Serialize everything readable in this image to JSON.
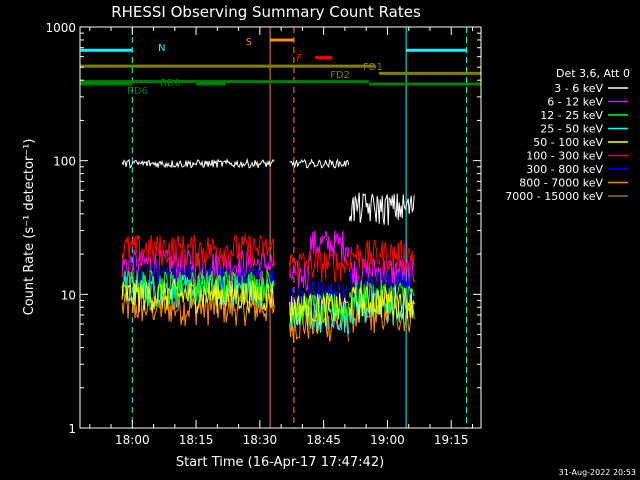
{
  "chart_data": {
    "type": "line",
    "title": "RHESSI Observing Summary Count Rates",
    "xlabel": "Start Time (16-Apr-17 17:47:42)",
    "ylabel": "Count Rate (s⁻¹ detector⁻¹)",
    "yscale": "log",
    "ylim": [
      1,
      1000
    ],
    "xlim_minutes_after_17_00": [
      47.7,
      142.0
    ],
    "y_ticks": [
      {
        "value": 1,
        "label": "1"
      },
      {
        "value": 10,
        "label": "10"
      },
      {
        "value": 100,
        "label": "100"
      },
      {
        "value": 1000,
        "label": "1000"
      }
    ],
    "x_ticks": [
      {
        "minute": 60,
        "label": "18:00"
      },
      {
        "minute": 75,
        "label": "18:15"
      },
      {
        "minute": 90,
        "label": "18:30"
      },
      {
        "minute": 105,
        "label": "18:45"
      },
      {
        "minute": 120,
        "label": "19:00"
      },
      {
        "minute": 135,
        "label": "19:15"
      }
    ],
    "grid": false,
    "legend_position": "right",
    "legend_title": "Det 3,6, Att 0",
    "series": [
      {
        "name": "3 - 6 keV",
        "color": "#ffffff",
        "segments": [
          [
            57.6,
            93.5,
            95
          ],
          [
            97.0,
            111.0,
            95
          ],
          [
            111.0,
            126.5,
            45
          ]
        ]
      },
      {
        "name": "6 - 12 keV",
        "color": "#ff00ff",
        "segments": [
          [
            57.6,
            93.5,
            17
          ],
          [
            97.0,
            101.5,
            14
          ],
          [
            101.5,
            111.0,
            24
          ],
          [
            111.0,
            126.5,
            15
          ]
        ]
      },
      {
        "name": "12 - 25 keV",
        "color": "#00ff00",
        "segments": [
          [
            57.6,
            93.5,
            12
          ],
          [
            97.0,
            111.0,
            8
          ],
          [
            111.0,
            126.5,
            10
          ]
        ]
      },
      {
        "name": "25 - 50 keV",
        "color": "#00ffff",
        "segments": [
          [
            57.6,
            93.5,
            11
          ],
          [
            97.0,
            111.0,
            7
          ],
          [
            111.0,
            126.5,
            8
          ]
        ]
      },
      {
        "name": "50 - 100 keV",
        "color": "#ffff00",
        "segments": [
          [
            57.6,
            93.5,
            10
          ],
          [
            97.0,
            111.0,
            8
          ],
          [
            111.0,
            126.5,
            9
          ]
        ]
      },
      {
        "name": "100 - 300 keV",
        "color": "#ff0000",
        "segments": [
          [
            57.6,
            93.5,
            22
          ],
          [
            97.0,
            111.0,
            17
          ],
          [
            111.0,
            126.5,
            20
          ]
        ]
      },
      {
        "name": "300 - 800 keV",
        "color": "#0000ff",
        "segments": [
          [
            57.6,
            93.5,
            13
          ],
          [
            97.0,
            111.0,
            10
          ],
          [
            111.0,
            126.5,
            12
          ]
        ]
      },
      {
        "name": "800 - 7000 keV",
        "color": "#ff8c00",
        "segments": [
          [
            57.6,
            93.5,
            8
          ],
          [
            97.0,
            111.0,
            6
          ],
          [
            111.0,
            126.5,
            7
          ]
        ]
      },
      {
        "name": "7000 - 15000 keV",
        "color": "#808000",
        "segments": []
      }
    ],
    "flag_bars": [
      {
        "label": "N",
        "color": "#00ffff",
        "level": 670,
        "spans": [
          [
            47.7,
            60.0
          ],
          [
            124.4,
            138.6
          ]
        ]
      },
      {
        "label": "S",
        "color": "#ff8c00",
        "level": 800,
        "spans": [
          [
            92.4,
            98.0
          ]
        ]
      },
      {
        "label": "F",
        "color": "#ff0000",
        "level": 590,
        "spans": [
          [
            103.0,
            107.0
          ]
        ]
      },
      {
        "label": "FD1",
        "color": "#808000",
        "level": 510,
        "spans": [
          [
            47.7,
            117.0
          ]
        ]
      },
      {
        "label": "FD2",
        "color": "#808000",
        "level": 450,
        "spans": [
          [
            118.0,
            142.0
          ]
        ]
      },
      {
        "label": "RD0",
        "color": "#008000",
        "level": 390,
        "spans": [
          [
            47.7,
            115.6
          ]
        ]
      },
      {
        "label": "RD6",
        "color": "#008000",
        "level": 375,
        "spans": [
          [
            47.7,
            60.0
          ],
          [
            75.0,
            82.0
          ],
          [
            115.6,
            142.0
          ]
        ]
      }
    ],
    "vlines": [
      {
        "minute": 47.7,
        "color": "#00ffff",
        "style": "solid"
      },
      {
        "minute": 60.0,
        "color": "#00ffff",
        "style": "dashed"
      },
      {
        "minute": 124.4,
        "color": "#00ffff",
        "style": "solid"
      },
      {
        "minute": 138.6,
        "color": "#00ffff",
        "style": "dashed"
      },
      {
        "minute": 92.4,
        "color": "#ff8c00",
        "style": "solid"
      },
      {
        "minute": 98.0,
        "color": "#ff8c00",
        "style": "dashed"
      }
    ]
  },
  "footer": {
    "timestamp": "31-Aug-2022 20:53"
  }
}
